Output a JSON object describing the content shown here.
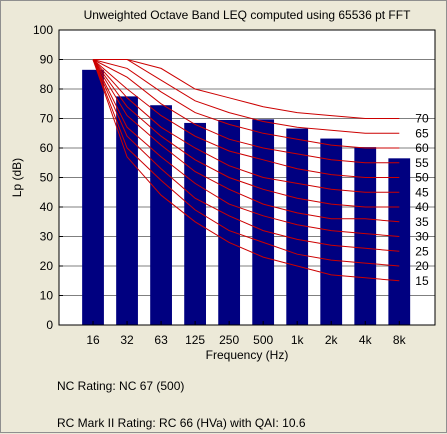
{
  "chart_data": {
    "type": "bar",
    "title": "Unweighted Octave Band LEQ computed using 65536 pt FFT",
    "xlabel": "Frequency (Hz)",
    "ylabel": "Lp (dB)",
    "ylim": [
      0,
      100
    ],
    "yticks": [
      "0",
      "10",
      "20",
      "30",
      "40",
      "50",
      "60",
      "70",
      "80",
      "90",
      "100"
    ],
    "grid": true,
    "categories": [
      "16",
      "32",
      "63",
      "125",
      "250",
      "500",
      "1k",
      "2k",
      "4k",
      "8k"
    ],
    "values": [
      86.5,
      77.5,
      74.5,
      68.5,
      69.5,
      69.7,
      66.6,
      63.2,
      60.3,
      56.5
    ],
    "bar_color": "#000080",
    "curve_color": "#cc0000",
    "nc_curves": [
      {
        "label": "15",
        "values": [
          90,
          57,
          44,
          35,
          28,
          23,
          20,
          17,
          16,
          15
        ]
      },
      {
        "label": "20",
        "values": [
          90,
          60,
          49,
          39,
          32,
          28,
          24,
          22,
          21,
          20
        ]
      },
      {
        "label": "25",
        "values": [
          90,
          64,
          53,
          43,
          37,
          32,
          29,
          27,
          26,
          25
        ]
      },
      {
        "label": "30",
        "values": [
          90,
          67,
          57,
          48,
          41,
          37,
          34,
          32,
          31,
          30
        ]
      },
      {
        "label": "35",
        "values": [
          90,
          71,
          61,
          52,
          46,
          41,
          38,
          36,
          36,
          35
        ]
      },
      {
        "label": "40",
        "values": [
          90,
          74,
          64,
          56,
          50,
          46,
          43,
          41,
          40,
          40
        ]
      },
      {
        "label": "45",
        "values": [
          90,
          77,
          67,
          60,
          54,
          50,
          48,
          46,
          45,
          45
        ]
      },
      {
        "label": "50",
        "values": [
          90,
          80,
          71,
          64,
          59,
          56,
          53,
          51,
          50,
          50
        ]
      },
      {
        "label": "55",
        "values": [
          90,
          84,
          75,
          68,
          63,
          60,
          58,
          56,
          55,
          55
        ]
      },
      {
        "label": "60",
        "values": [
          90,
          87,
          79,
          72,
          68,
          65,
          63,
          61,
          60,
          60
        ]
      },
      {
        "label": "65",
        "values": [
          90,
          90,
          83,
          76,
          72,
          69,
          67,
          66,
          65,
          65
        ]
      },
      {
        "label": "70",
        "values": [
          90,
          90,
          87,
          80,
          77,
          74,
          72,
          71,
          70,
          70
        ]
      }
    ]
  },
  "ratings": {
    "nc": "NC Rating: NC 67 (500)",
    "rc": "RC Mark II Rating: RC 66 (HVa) with QAI: 10.6"
  }
}
